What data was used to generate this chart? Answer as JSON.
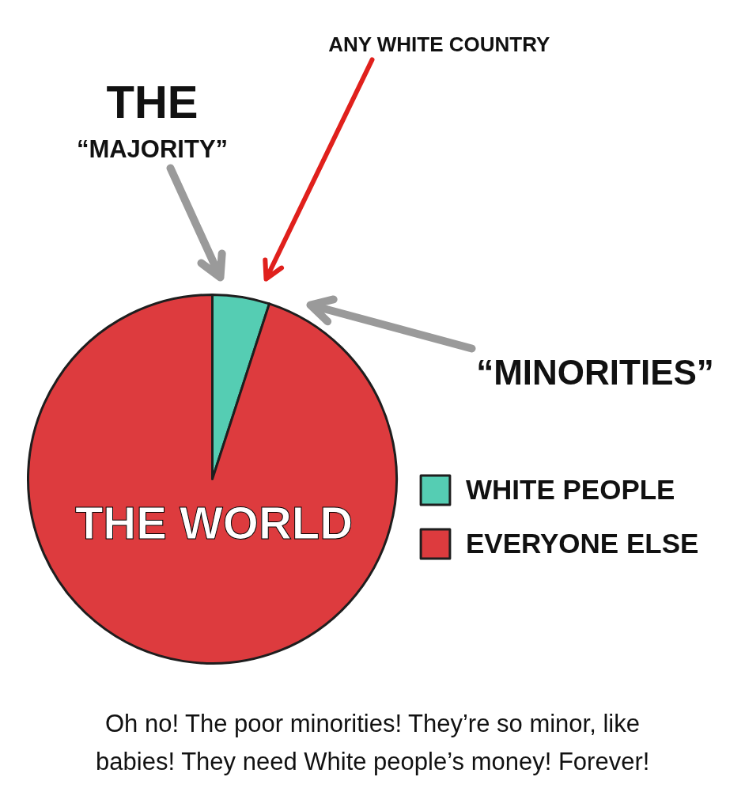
{
  "chart_data": {
    "type": "pie",
    "title": "THE WORLD",
    "categories": [
      "WHITE PEOPLE",
      "EVERYONE ELSE"
    ],
    "values": [
      5,
      95
    ],
    "colors": [
      "#55cdb3",
      "#dd3b3e"
    ],
    "legend": "right",
    "annotations": [
      "ANY WHITE COUNTRY",
      "THE",
      "“MAJORITY”",
      "“MINORITIES”",
      "Oh no! The poor minorities! They’re so minor, like babies! They need White people’s money! Forever!"
    ]
  }
}
